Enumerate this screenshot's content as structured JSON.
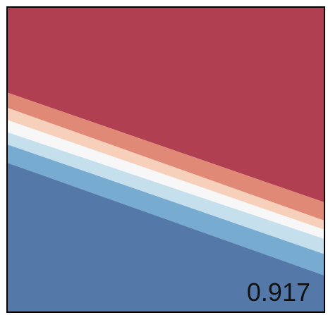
{
  "chart_data": {
    "type": "heatmap",
    "title": "",
    "xlabel": "",
    "ylabel": "",
    "grid": false,
    "legend": "none",
    "annotation": "0.917",
    "colors": {
      "frame": "#000000",
      "bands": [
        "#b03f52",
        "#e08976",
        "#f7d0bc",
        "#f7f7f7",
        "#c6dfec",
        "#77abd0",
        "#5479a8"
      ]
    },
    "boundaries": [
      {
        "left": 0.72,
        "right": 0.36
      },
      {
        "left": 0.67,
        "right": 0.3
      },
      {
        "left": 0.63,
        "right": 0.27
      },
      {
        "left": 0.59,
        "right": 0.24
      },
      {
        "left": 0.55,
        "right": 0.19
      },
      {
        "left": 0.49,
        "right": 0.12
      }
    ]
  }
}
